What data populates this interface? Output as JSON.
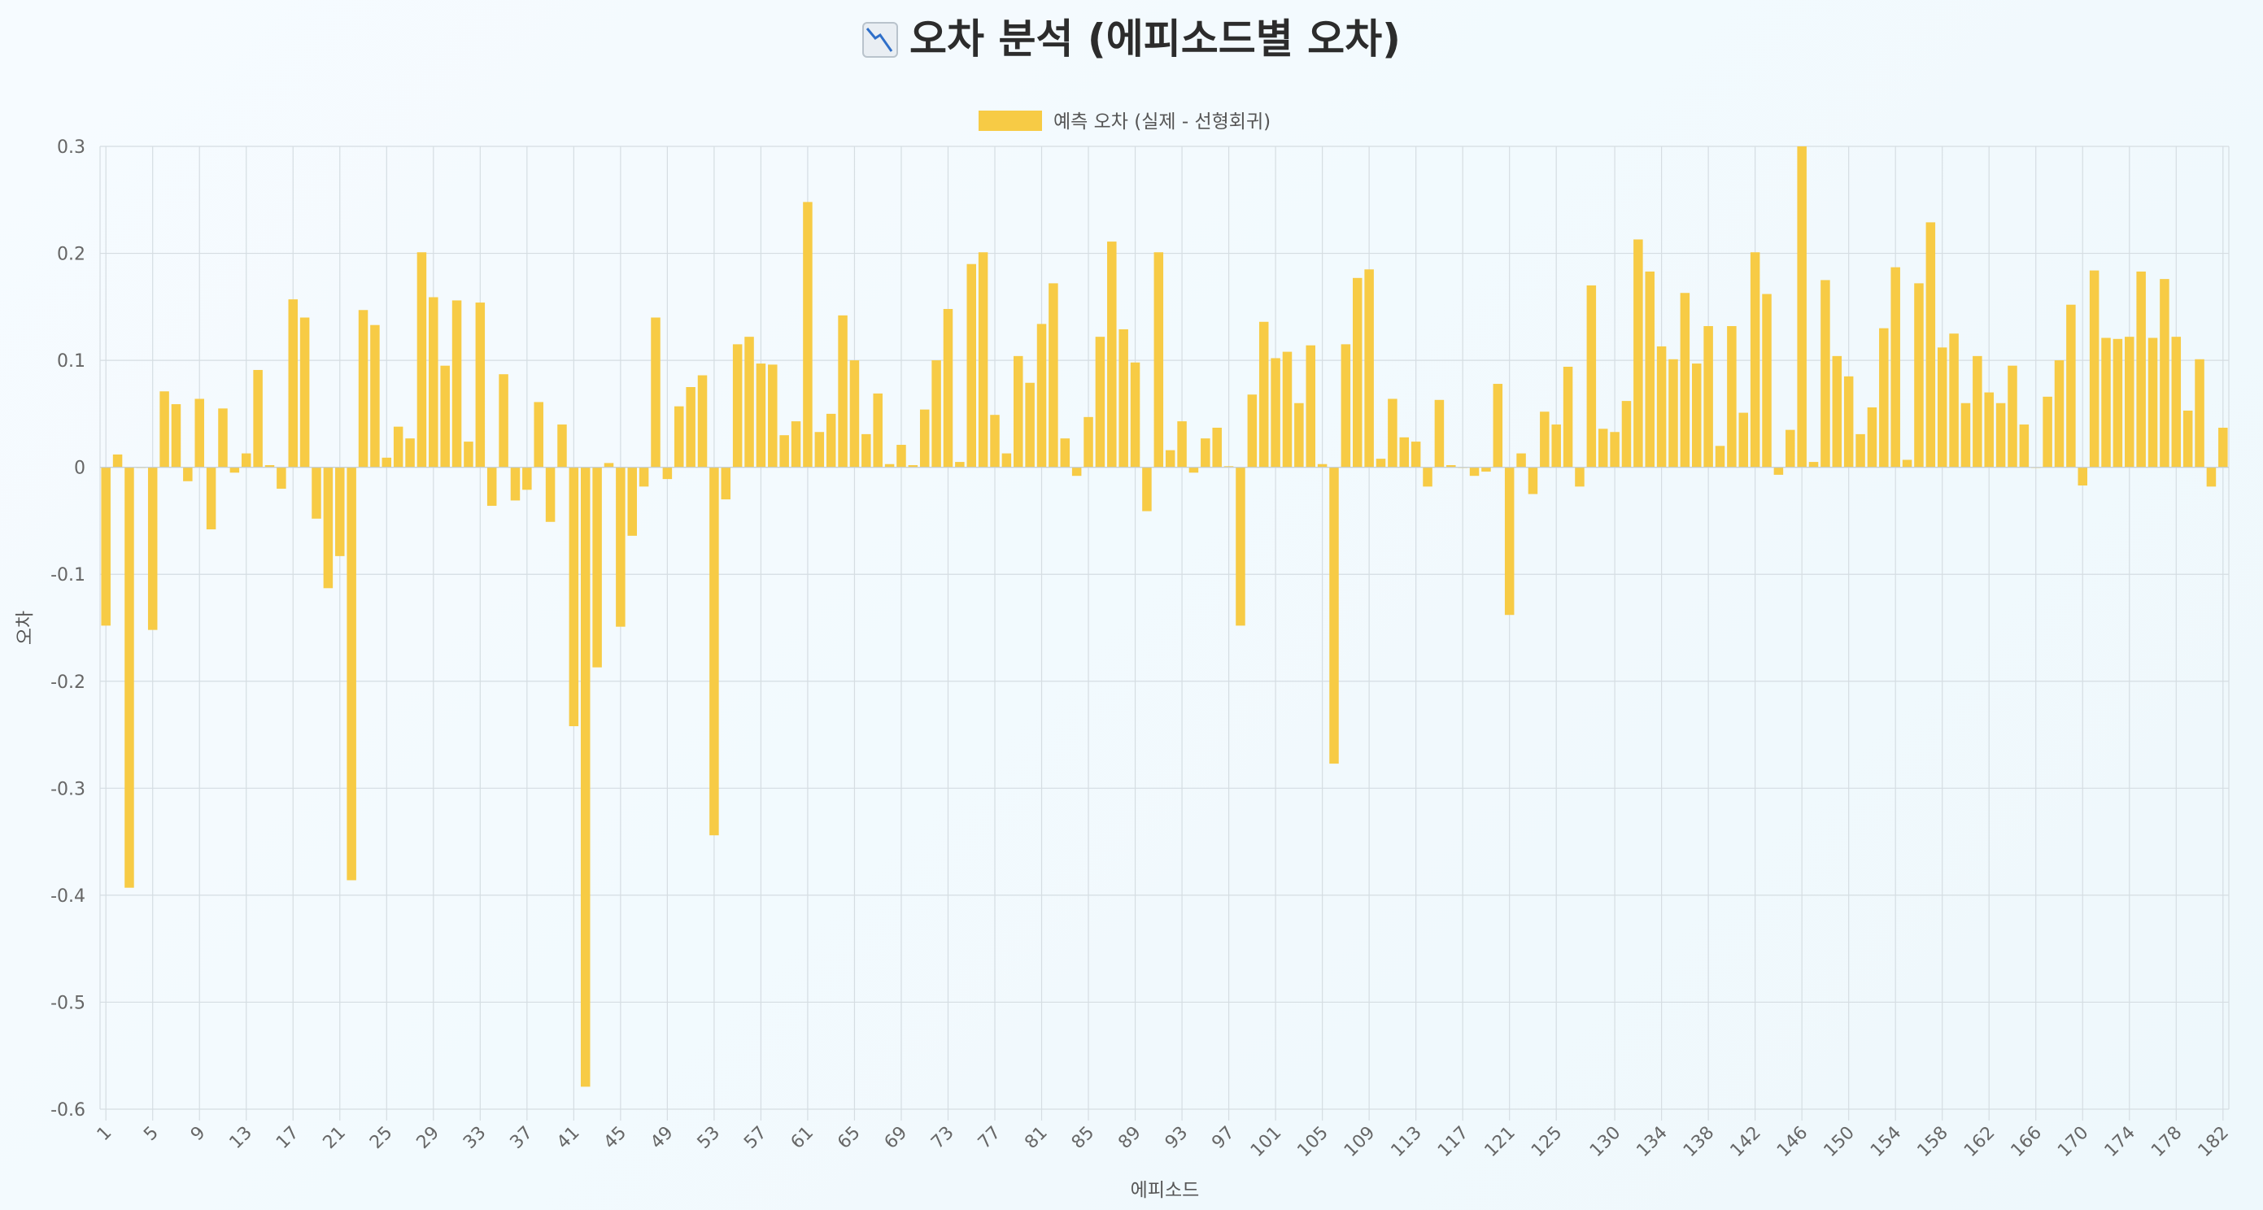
{
  "header": {
    "title": "오차 분석 (에피소드별 오차)",
    "icon": "chart-decreasing-icon"
  },
  "colors": {
    "bar": "#F7CB45",
    "grid": "#d5dde2",
    "tick": "#666666"
  },
  "chart_data": {
    "type": "bar",
    "title": "오차 분석 (에피소드별 오차)",
    "xlabel": "에피소드",
    "ylabel": "오차",
    "ylim": [
      -0.6,
      0.3
    ],
    "yticks": [
      0.3,
      0.2,
      0.1,
      0,
      -0.1,
      -0.2,
      -0.3,
      -0.4,
      -0.5,
      -0.6
    ],
    "ytick_labels": [
      "0.3",
      "0.2",
      "0.1",
      "0",
      "-0.1",
      "-0.2",
      "-0.3",
      "-0.4",
      "-0.5",
      "-0.6"
    ],
    "legend_position": "top-center",
    "grid": true,
    "series": [
      {
        "name": "예측 오차 (실제 - 선형회귀)",
        "values": [
          -0.148,
          0.012,
          -0.393,
          0,
          -0.152,
          0.071,
          0.059,
          -0.013,
          0.064,
          -0.058,
          0.055,
          -0.005,
          0.013,
          0.091,
          0.002,
          -0.02,
          0.157,
          0.14,
          -0.048,
          -0.113,
          -0.083,
          -0.386,
          0.147,
          0.133,
          0.009,
          0.038,
          0.027,
          0.201,
          0.159,
          0.095,
          0.156,
          0.024,
          0.154,
          -0.036,
          0.087,
          -0.031,
          -0.021,
          0.061,
          -0.051,
          0.04,
          -0.242,
          -0.579,
          -0.187,
          0.004,
          -0.149,
          -0.064,
          -0.018,
          0.14,
          -0.011,
          0.057,
          0.075,
          0.086,
          -0.344,
          -0.03,
          0.115,
          0.122,
          0.097,
          0.096,
          0.03,
          0.043,
          0.248,
          0.033,
          0.05,
          0.142,
          0.1,
          0.031,
          0.069,
          0.003,
          0.021,
          0.002,
          0.054,
          0.1,
          0.148,
          0.005,
          0.19,
          0.201,
          0.049,
          0.013,
          0.104,
          0.079,
          0.134,
          0.172,
          0.027,
          -0.008,
          0.047,
          0.122,
          0.211,
          0.129,
          0.098,
          -0.041,
          0.201,
          0.016,
          0.043,
          -0.005,
          0.027,
          0.037,
          0.001,
          -0.148,
          0.068,
          0.136,
          0.102,
          0.108,
          0.06,
          0.114,
          0.003,
          -0.277,
          0.115,
          0.177,
          0.185,
          0.008,
          0.064,
          0.028,
          0.024,
          -0.018,
          0.063,
          0.002,
          0,
          -0.008,
          -0.004,
          0.078,
          -0.138,
          0.013,
          -0.025,
          0.052,
          0.04,
          0.094,
          -0.018,
          0.17,
          0.036,
          0.033,
          0.062,
          0.213,
          0.183,
          0.113,
          0.101,
          0.163,
          0.097,
          0.132,
          0.02,
          0.132,
          0.051,
          0.201,
          0.162,
          -0.007,
          0.035,
          0.3,
          0.005,
          0.175,
          0.104,
          0.085,
          0.031,
          0.056,
          0.13,
          0.187,
          0.007,
          0.172,
          0.229,
          0.112,
          0.125,
          0.06,
          0.104,
          0.07,
          0.06,
          0.095,
          0.04,
          0,
          0.066,
          0.1,
          0.152,
          -0.017,
          0.184,
          0.121,
          0.12,
          0.122,
          0.183,
          0.121,
          0.176,
          0.122,
          0.053,
          0.101,
          -0.018,
          0.037
        ]
      }
    ],
    "x_tick_labels": [
      "1",
      "5",
      "9",
      "13",
      "17",
      "21",
      "25",
      "29",
      "33",
      "37",
      "41",
      "45",
      "49",
      "53",
      "57",
      "61",
      "65",
      "69",
      "73",
      "77",
      "81",
      "85",
      "89",
      "93",
      "97",
      "101",
      "105",
      "109",
      "113",
      "117",
      "121",
      "125",
      "130",
      "134",
      "138",
      "142",
      "146",
      "150",
      "154",
      "158",
      "162",
      "166",
      "170",
      "174",
      "178",
      "182"
    ]
  }
}
